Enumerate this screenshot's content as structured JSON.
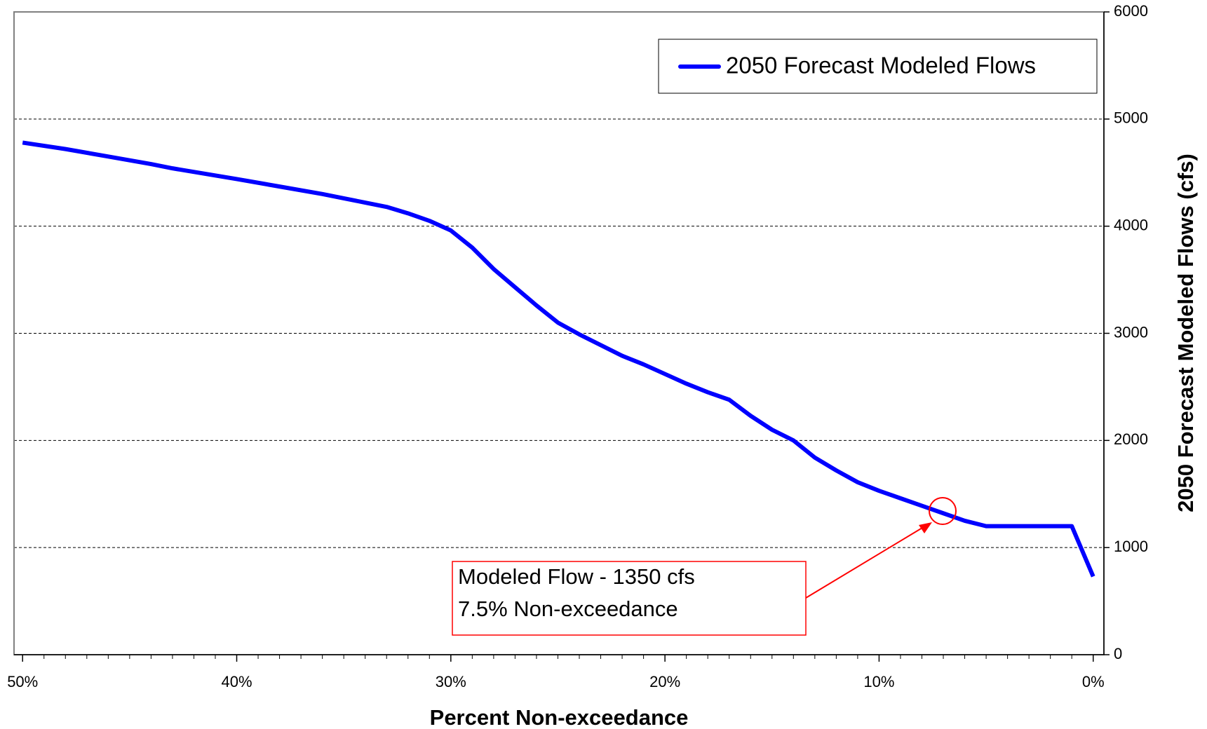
{
  "chart_data": {
    "type": "line",
    "x": [
      50,
      48,
      46,
      44,
      43,
      40,
      38,
      36,
      35,
      34,
      33,
      32,
      31,
      30,
      29,
      28,
      27,
      26,
      25,
      24,
      23,
      22,
      21,
      20,
      19,
      18,
      17,
      16,
      15,
      14,
      13,
      12,
      11,
      10,
      9,
      8,
      7,
      6,
      5,
      4,
      3,
      2,
      1,
      0
    ],
    "series": [
      {
        "name": "2050 Forecast Modeled Flows",
        "color": "#0000ff",
        "values": [
          4780,
          4720,
          4650,
          4580,
          4540,
          4440,
          4370,
          4300,
          4260,
          4220,
          4180,
          4120,
          4050,
          3960,
          3800,
          3600,
          3430,
          3260,
          3100,
          2990,
          2890,
          2790,
          2710,
          2620,
          2530,
          2450,
          2380,
          2230,
          2100,
          2000,
          1840,
          1720,
          1610,
          1530,
          1460,
          1390,
          1320,
          1250,
          1200,
          1200,
          1200,
          1200,
          1200,
          730
        ]
      }
    ],
    "xlim": [
      50.4,
      -0.5
    ],
    "xticks": [
      {
        "value": 50,
        "label": "50%"
      },
      {
        "value": 40,
        "label": "40%"
      },
      {
        "value": 30,
        "label": "30%"
      },
      {
        "value": 20,
        "label": "20%"
      },
      {
        "value": 10,
        "label": "10%"
      },
      {
        "value": 0,
        "label": "0%"
      }
    ],
    "ylim": [
      0,
      6000
    ],
    "yticks": [
      0,
      1000,
      2000,
      3000,
      4000,
      5000,
      6000
    ],
    "x_label": "Percent Non-exceedance",
    "y_label": "2050 Forecast Modeled Flows (cfs)",
    "grid": true,
    "legend": "upper right",
    "annotation": [
      "Modeled Flow - 1350 cfs",
      "7.5% Non-exceedance"
    ]
  }
}
